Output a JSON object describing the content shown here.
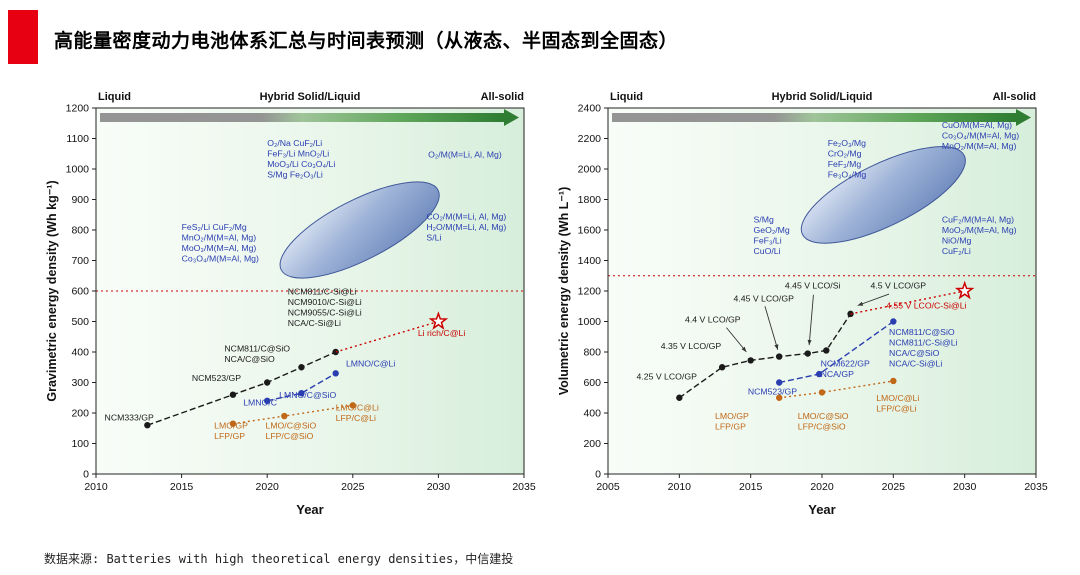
{
  "header": {
    "title": "高能量密度动力电池体系汇总与时间表预测（从液态、半固态到全固态）"
  },
  "footer": {
    "source": "数据来源: Batteries with high theoretical energy densities，中信建投"
  },
  "palette": {
    "black": "#1a1a1a",
    "blue": "#2a3eb1",
    "orange": "#c06818",
    "red": "#cc0000",
    "accent": "#e60012",
    "arrow_green": "#2e7d32"
  },
  "chart_data": [
    {
      "name": "gravimetric",
      "type": "line",
      "xlabel": "Year",
      "ylabel": "Gravimetric energy density (Wh kg⁻¹)",
      "xlim": [
        2010,
        2035
      ],
      "xtick": 5,
      "ylim": [
        0,
        1200
      ],
      "ytick": 100,
      "zones": [
        "Liquid",
        "Hybrid Solid/Liquid",
        "All-solid"
      ],
      "threshold": 600,
      "ellipse": {
        "cx": 2025.4,
        "cy": 800,
        "rx": 88,
        "ry": 30,
        "rot": -27
      },
      "star": {
        "x": 2030,
        "y": 500
      },
      "series": [
        {
          "name": "ncm-nca",
          "color": "black",
          "dash": "6,3",
          "marker": true,
          "x": [
            2013,
            2018,
            2020,
            2022,
            2024
          ],
          "y": [
            160,
            260,
            300,
            350,
            400
          ]
        },
        {
          "name": "lmno",
          "color": "blue",
          "dash": "6,3",
          "marker": true,
          "x": [
            2020,
            2022,
            2024
          ],
          "y": [
            240,
            265,
            330
          ]
        },
        {
          "name": "lmo-lfp",
          "color": "orange",
          "dash": "2,3",
          "marker": true,
          "x": [
            2018,
            2021,
            2025
          ],
          "y": [
            165,
            190,
            225
          ]
        },
        {
          "name": "projection",
          "color": "red",
          "dash": "2,3",
          "marker": false,
          "x": [
            2024,
            2030
          ],
          "y": [
            400,
            500
          ]
        }
      ],
      "arrows": [],
      "annotations": [
        {
          "x": 2020.0,
          "y": 1075,
          "color": "blue",
          "lines": [
            "O₂/Na  CuF₂/Li",
            "FeF₃/Li  MnO₂/Li",
            "MoO₃/Li  Co₃O₄/Li",
            "S/Mg  Fe₂O₃/Li"
          ]
        },
        {
          "x": 2029.4,
          "y": 1037,
          "color": "blue",
          "lines": [
            "O₂/M(M=Li, Al, Mg)"
          ]
        },
        {
          "x": 2029.3,
          "y": 835,
          "color": "blue",
          "lines": [
            "CO₂/M(M=Li, Al, Mg)",
            "H₂O/M(M=Li, Al, Mg)",
            "S/Li"
          ]
        },
        {
          "x": 2015.0,
          "y": 800,
          "color": "blue",
          "lines": [
            "FeS₂/Li  CuF₂/Mg",
            "MnO₂/M(M=Al, Mg)",
            "MoO₃/M(M=Al, Mg)",
            "Co₃O₄/M(M=Al, Mg)"
          ]
        },
        {
          "x": 2021.2,
          "y": 588,
          "color": "black",
          "lines": [
            "NCM811/C-Si@Li",
            "NCM9010/C-Si@Li",
            "NCM9055/C-Si@Li",
            "NCA/C-Si@Li"
          ]
        },
        {
          "x": 2028.8,
          "y": 452,
          "color": "red",
          "lines": [
            "Li rich/C@Li"
          ]
        },
        {
          "x": 2017.5,
          "y": 402,
          "color": "black",
          "lines": [
            "NCM811/C@SiO",
            "NCA/C@SiO"
          ]
        },
        {
          "x": 2015.6,
          "y": 305,
          "color": "black",
          "lines": [
            "NCM523/GP"
          ]
        },
        {
          "x": 2010.5,
          "y": 175,
          "color": "black",
          "lines": [
            "NCM333/GP"
          ]
        },
        {
          "x": 2024.6,
          "y": 352,
          "color": "blue",
          "lines": [
            "LMNO/C@Li"
          ]
        },
        {
          "x": 2020.7,
          "y": 250,
          "color": "blue",
          "lines": [
            "LMNO/C@SiO"
          ]
        },
        {
          "x": 2018.6,
          "y": 224,
          "color": "blue",
          "lines": [
            "LMNO/C"
          ]
        },
        {
          "x": 2016.9,
          "y": 150,
          "color": "orange",
          "lines": [
            "LMO/GP",
            "LFP/GP"
          ]
        },
        {
          "x": 2019.9,
          "y": 150,
          "color": "orange",
          "lines": [
            "LMO/C@SiO",
            "LFP/C@SiO"
          ]
        },
        {
          "x": 2024.0,
          "y": 208,
          "color": "orange",
          "lines": [
            "LMO/C@Li",
            "LFP/C@Li"
          ]
        }
      ]
    },
    {
      "name": "volumetric",
      "type": "line",
      "xlabel": "Year",
      "ylabel": "Volumetric energy density (Wh L⁻¹)",
      "xlim": [
        2005,
        2035
      ],
      "xtick": 5,
      "ylim": [
        0,
        2400
      ],
      "ytick": 200,
      "zones": [
        "Liquid",
        "Hybrid Solid/Liquid",
        "All-solid"
      ],
      "threshold": 1300,
      "ellipse": {
        "cx": 2024.3,
        "cy": 1830,
        "rx": 90,
        "ry": 31,
        "rot": -26
      },
      "star": {
        "x": 2030,
        "y": 1200
      },
      "series": [
        {
          "name": "lco",
          "color": "black",
          "dash": "6,3",
          "marker": true,
          "x": [
            2010,
            2013,
            2015,
            2017,
            2019,
            2020.3,
            2022
          ],
          "y": [
            500,
            700,
            745,
            770,
            790,
            810,
            1050
          ]
        },
        {
          "name": "ncm-nca",
          "color": "blue",
          "dash": "6,3",
          "marker": true,
          "x": [
            2017,
            2019.8,
            2025
          ],
          "y": [
            600,
            655,
            1000
          ]
        },
        {
          "name": "lmo-lfp",
          "color": "orange",
          "dash": "2,3",
          "marker": true,
          "x": [
            2017,
            2020,
            2025
          ],
          "y": [
            500,
            535,
            610
          ]
        },
        {
          "name": "projection",
          "color": "red",
          "dash": "2,3",
          "marker": false,
          "x": [
            2022,
            2030
          ],
          "y": [
            1050,
            1200
          ]
        }
      ],
      "arrows": [
        {
          "x1": 2013.3,
          "y1": 960,
          "x2": 2014.7,
          "y2": 800
        },
        {
          "x1": 2016.0,
          "y1": 1100,
          "x2": 2016.9,
          "y2": 815
        },
        {
          "x1": 2019.4,
          "y1": 1175,
          "x2": 2019.1,
          "y2": 845
        },
        {
          "x1": 2024.7,
          "y1": 1180,
          "x2": 2022.5,
          "y2": 1105
        }
      ],
      "annotations": [
        {
          "x": 2020.4,
          "y": 2150,
          "color": "blue",
          "lines": [
            "Fe₂O₃/Mg",
            "CrO₂/Mg",
            "FeF₃/Mg",
            "Fe₃O₄/Mg"
          ]
        },
        {
          "x": 2028.4,
          "y": 2270,
          "color": "blue",
          "lines": [
            "CuO/M(M=Al, Mg)",
            "Co₃O₄/M(M=Al, Mg)",
            "MnO₂/M(M=Al, Mg)"
          ]
        },
        {
          "x": 2015.2,
          "y": 1650,
          "color": "blue",
          "lines": [
            "S/Mg",
            "GeO₂/Mg",
            "FeF₃/Li",
            "CuO/Li"
          ]
        },
        {
          "x": 2028.4,
          "y": 1650,
          "color": "blue",
          "lines": [
            "CuF₂/M(M=Al, Mg)",
            "MoO₃/M(M=Al, Mg)",
            "NiO/Mg",
            "CuF₂/Li"
          ]
        },
        {
          "x": 2007.0,
          "y": 620,
          "color": "black",
          "lines": [
            "4.25 V LCO/GP"
          ]
        },
        {
          "x": 2008.7,
          "y": 820,
          "color": "black",
          "lines": [
            "4.35 V LCO/GP"
          ]
        },
        {
          "x": 2010.4,
          "y": 995,
          "color": "black",
          "lines": [
            "4.4 V LCO/GP"
          ]
        },
        {
          "x": 2013.8,
          "y": 1130,
          "color": "black",
          "lines": [
            "4.45 V LCO/GP"
          ]
        },
        {
          "x": 2017.4,
          "y": 1215,
          "color": "black",
          "lines": [
            "4.45 V LCO/Si"
          ]
        },
        {
          "x": 2023.4,
          "y": 1215,
          "color": "black",
          "lines": [
            "4.5 V LCO/GP"
          ]
        },
        {
          "x": 2024.5,
          "y": 1085,
          "color": "red",
          "lines": [
            "4.55 V LCO/C-Si@Li"
          ]
        },
        {
          "x": 2014.8,
          "y": 520,
          "color": "blue",
          "lines": [
            "NCM523/GP"
          ]
        },
        {
          "x": 2019.9,
          "y": 705,
          "color": "blue",
          "lines": [
            "NCM622/GP",
            "NCA/GP"
          ]
        },
        {
          "x": 2024.7,
          "y": 910,
          "color": "blue",
          "lines": [
            "NCM811/C@SiO",
            "NCM811/C-Si@Li",
            "NCA/C@SiO",
            "NCA/C-Si@Li"
          ]
        },
        {
          "x": 2012.5,
          "y": 360,
          "color": "orange",
          "lines": [
            "LMO/GP",
            "LFP/GP"
          ]
        },
        {
          "x": 2018.3,
          "y": 360,
          "color": "orange",
          "lines": [
            "LMO/C@SiO",
            "LFP/C@SiO"
          ]
        },
        {
          "x": 2023.8,
          "y": 480,
          "color": "orange",
          "lines": [
            "LMO/C@Li",
            "LFP/C@Li"
          ]
        }
      ]
    }
  ]
}
